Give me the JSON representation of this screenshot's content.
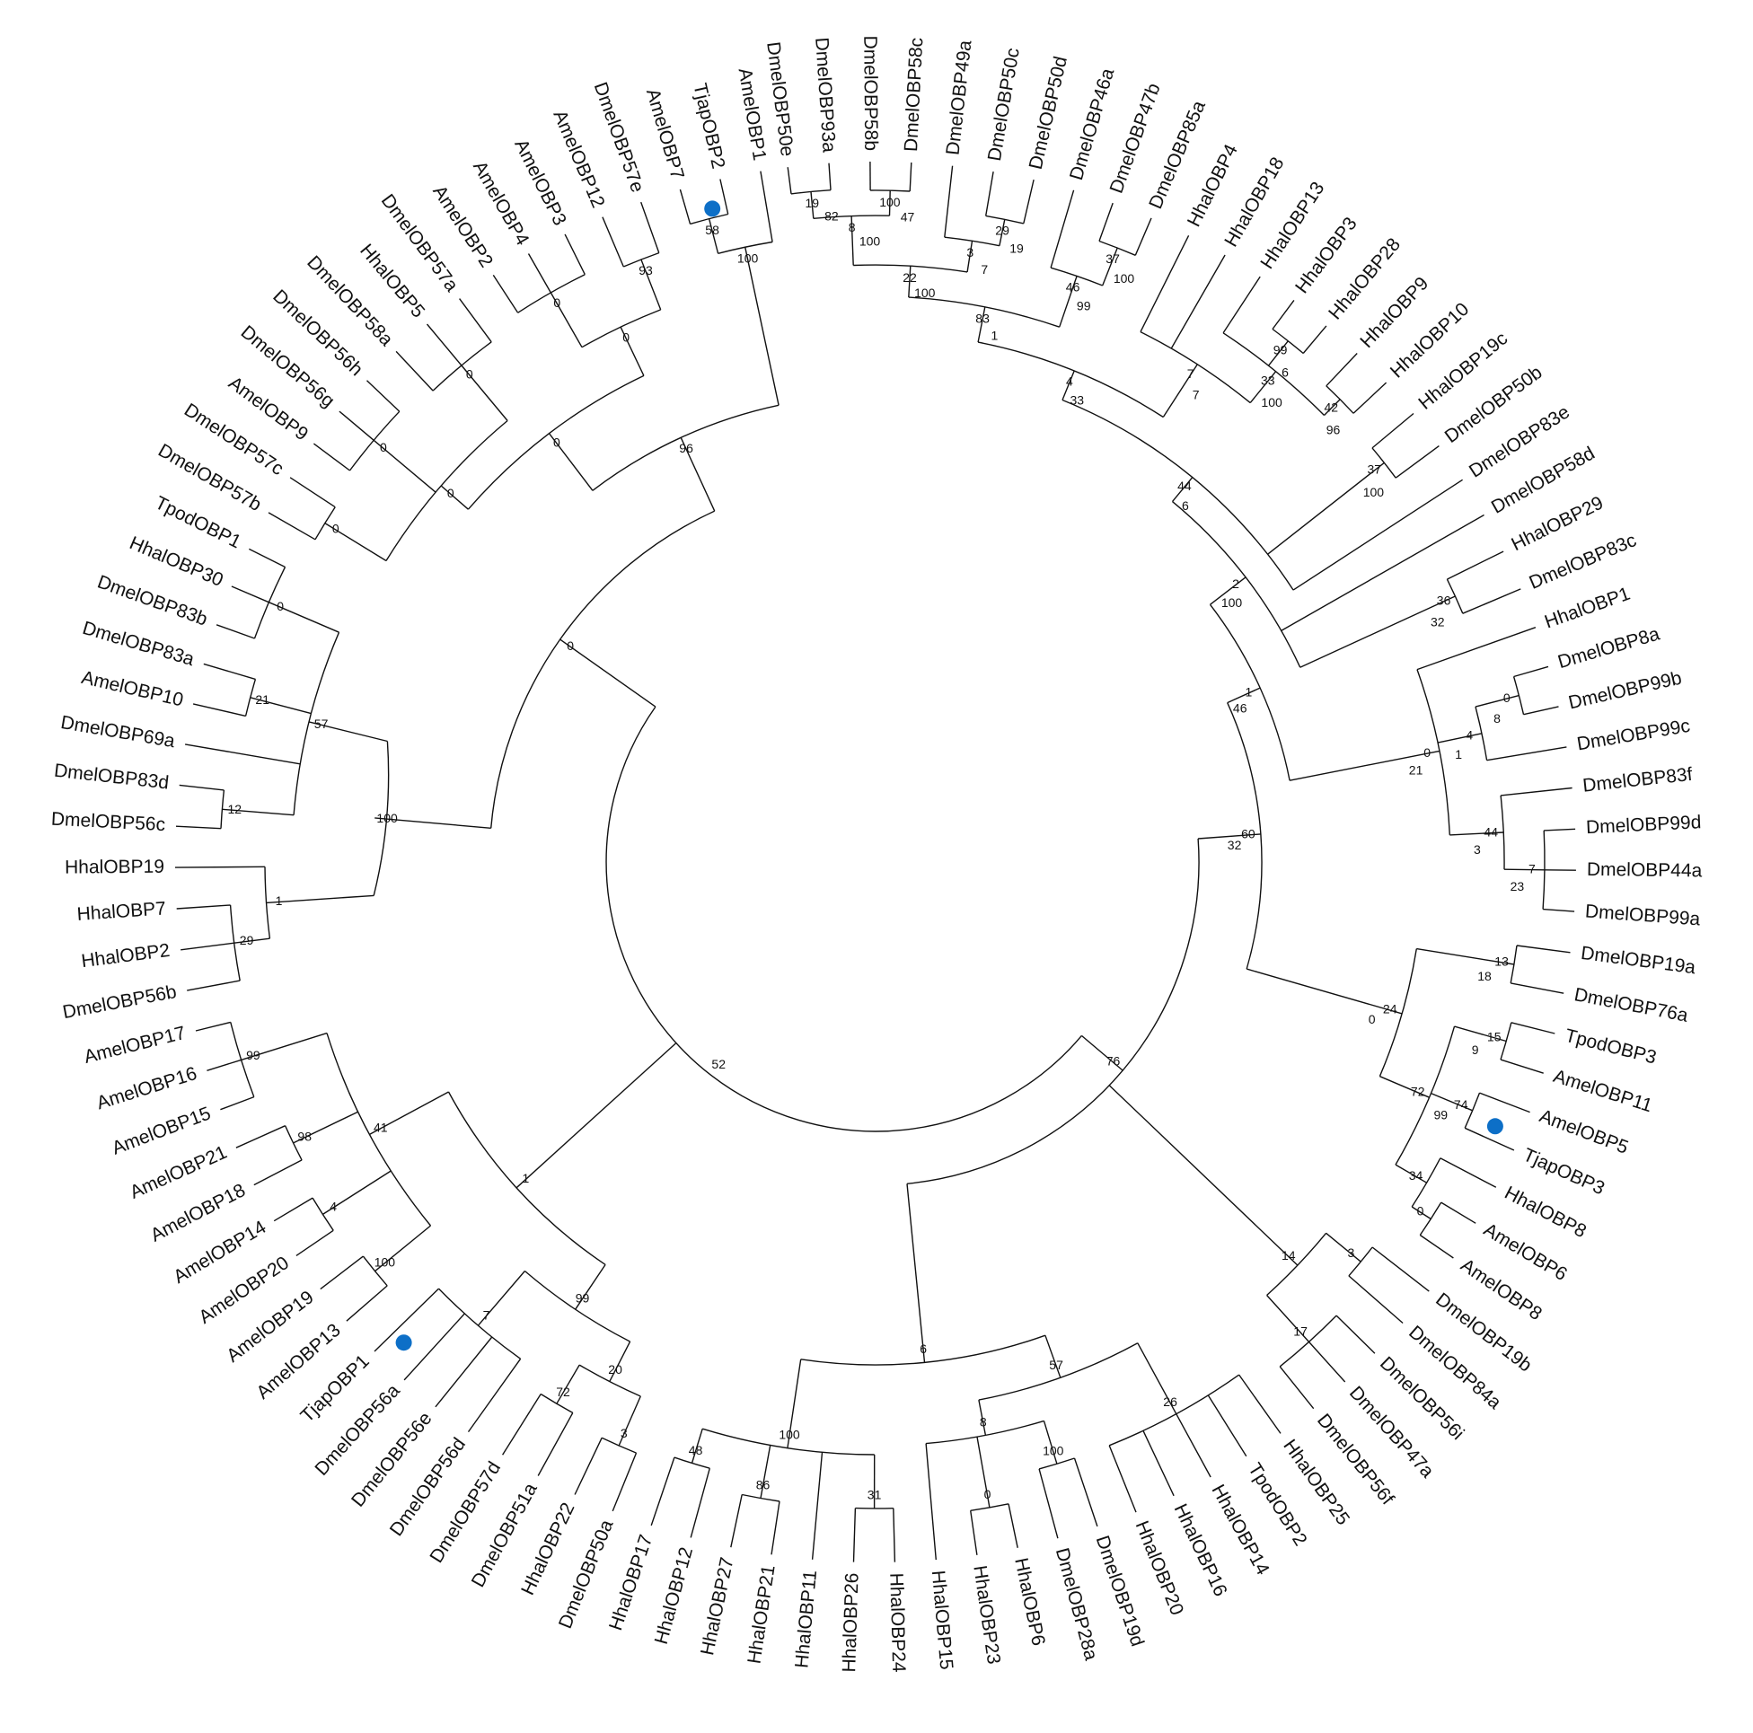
{
  "tree": {
    "marker_color": "#0d6fc7",
    "leaves": [
      "DmelOBP50e",
      "DmelOBP93a",
      "DmelOBP58b",
      "DmelOBP58c",
      "DmelOBP49a",
      "DmelOBP50c",
      "DmelOBP50d",
      "DmelOBP46a",
      "DmelOBP47b",
      "DmelOBP85a",
      "HhalOBP4",
      "HhalOBP18",
      "HhalOBP13",
      "HhalOBP3",
      "HhalOBP28",
      "HhalOBP9",
      "HhalOBP10",
      "HhalOBP19c",
      "DmelOBP50b",
      "DmelOBP83e",
      "DmelOBP58d",
      "HhalOBP29",
      "DmelOBP83c",
      "HhalOBP1",
      "DmelOBP8a",
      "DmelOBP99b",
      "DmelOBP99c",
      "DmelOBP83f",
      "DmelOBP99d",
      "DmelOBP44a",
      "DmelOBP99a",
      "DmelOBP19a",
      "DmelOBP76a",
      "TpodOBP3",
      "AmelOBP11",
      "AmelOBP5",
      "TjapOBP3",
      "HhalOBP8",
      "AmelOBP6",
      "AmelOBP8",
      "DmelOBP19b",
      "DmelOBP84a",
      "DmelOBP56i",
      "DmelOBP47a",
      "DmelOBP56f",
      "HhalOBP25",
      "TpodOBP2",
      "HhalOBP14",
      "HhalOBP16",
      "HhalOBP20",
      "DmelOBP19d",
      "DmelOBP28a",
      "HhalOBP6",
      "HhalOBP23",
      "HhalOBP15",
      "HhalOBP24",
      "HhalOBP26",
      "HhalOBP11",
      "HhalOBP21",
      "HhalOBP27",
      "HhalOBP12",
      "HhalOBP17",
      "DmelOBP50a",
      "HhalOBP22",
      "DmelOBP51a",
      "DmelOBP57d",
      "DmelOBP56d",
      "DmelOBP56e",
      "DmelOBP56a",
      "TjapOBP1",
      "AmelOBP13",
      "AmelOBP19",
      "AmelOBP20",
      "AmelOBP14",
      "AmelOBP18",
      "AmelOBP21",
      "AmelOBP15",
      "AmelOBP16",
      "AmelOBP17",
      "DmelOBP56b",
      "HhalOBP2",
      "HhalOBP7",
      "HhalOBP19",
      "DmelOBP56c",
      "DmelOBP83d",
      "DmelOBP69a",
      "AmelOBP10",
      "DmelOBP83a",
      "DmelOBP83b",
      "HhalOBP30",
      "TpodOBP1",
      "DmelOBP57b",
      "DmelOBP57c",
      "AmelOBP9",
      "DmelOBP56g",
      "DmelOBP56h",
      "DmelOBP58a",
      "HhalOBP5",
      "DmelOBP57a",
      "AmelOBP2",
      "AmelOBP4",
      "AmelOBP3",
      "AmelOBP12",
      "DmelOBP57e",
      "AmelOBP7",
      "TjapOBP2",
      "AmelOBP1"
    ],
    "highlighted": [
      "TjapOBP1",
      "TjapOBP2",
      "TjapOBP3"
    ],
    "bootstrap_labels": [
      "19",
      "8",
      "100",
      "22",
      "3",
      "83",
      "29",
      "46",
      "37",
      "4",
      "7",
      "99",
      "33",
      "44",
      "42",
      "37",
      "2",
      "36",
      "1",
      "0",
      "4",
      "0",
      "60",
      "44",
      "7",
      "13",
      "15",
      "24",
      "74",
      "72",
      "34",
      "0",
      "3",
      "76",
      "14",
      "17",
      "26",
      "57",
      "100",
      "8",
      "0",
      "6",
      "31",
      "100",
      "86",
      "48",
      "3",
      "20",
      "72",
      "99",
      "52",
      "7",
      "1",
      "100",
      "4",
      "41",
      "98",
      "99",
      "29",
      "1",
      "12",
      "100",
      "57",
      "21",
      "0",
      "0",
      "0",
      "0",
      "0",
      "0",
      "0",
      "0",
      "0",
      "96",
      "93",
      "58",
      "100",
      "82",
      "100",
      "47",
      "100",
      "7",
      "1",
      "19",
      "99",
      "100",
      "33",
      "7",
      "6",
      "100",
      "6",
      "96",
      "100",
      "100",
      "32",
      "46",
      "8",
      "1",
      "21",
      "32",
      "3",
      "23",
      "18",
      "9",
      "0",
      "99"
    ]
  }
}
